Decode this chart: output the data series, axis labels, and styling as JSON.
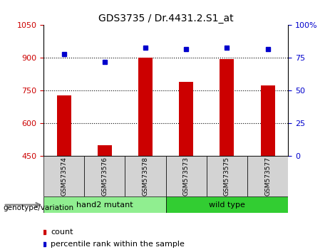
{
  "title": "GDS3735 / Dr.4431.2.S1_at",
  "categories": [
    "GSM573574",
    "GSM573576",
    "GSM573578",
    "GSM573573",
    "GSM573575",
    "GSM573577"
  ],
  "counts": [
    730,
    500,
    900,
    790,
    895,
    775
  ],
  "percentiles": [
    78,
    72,
    83,
    82,
    83,
    82
  ],
  "groups": [
    {
      "label": "hand2 mutant",
      "indices": [
        0,
        1,
        2
      ],
      "color": "#90EE90"
    },
    {
      "label": "wild type",
      "indices": [
        3,
        4,
        5
      ],
      "color": "#32CD32"
    }
  ],
  "ylim_left": [
    450,
    1050
  ],
  "ylim_right": [
    0,
    100
  ],
  "yticks_left": [
    450,
    600,
    750,
    900,
    1050
  ],
  "yticks_right": [
    0,
    25,
    50,
    75,
    100
  ],
  "bar_color": "#CC0000",
  "dot_color": "#0000CC",
  "grid_color": "#000000",
  "bg_color": "#FFFFFF",
  "xlabel_color": "#000000",
  "group_label": "genotype/variation",
  "group_row_color": "#D3D3D3",
  "legend_count_color": "#CC0000",
  "legend_pct_color": "#0000CC"
}
